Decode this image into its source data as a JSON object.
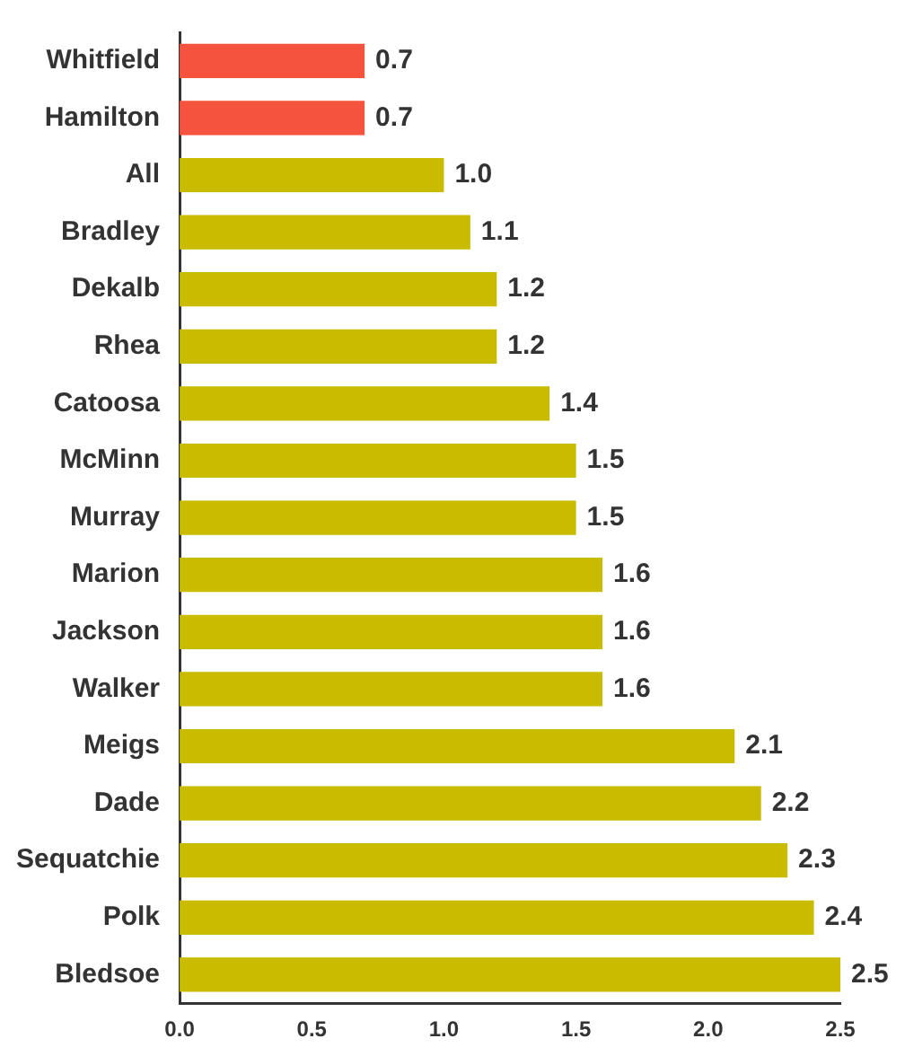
{
  "chart_data": {
    "type": "bar",
    "orientation": "horizontal",
    "categories": [
      "Whitfield",
      "Hamilton",
      "All",
      "Bradley",
      "Dekalb",
      "Rhea",
      "Catoosa",
      "McMinn",
      "Murray",
      "Marion",
      "Jackson",
      "Walker",
      "Meigs",
      "Dade",
      "Sequatchie",
      "Polk",
      "Bledsoe"
    ],
    "values": [
      0.7,
      0.7,
      1.0,
      1.1,
      1.2,
      1.2,
      1.4,
      1.5,
      1.5,
      1.6,
      1.6,
      1.6,
      2.1,
      2.2,
      2.3,
      2.4,
      2.5
    ],
    "value_labels": [
      "0.7",
      "0.7",
      "1.0",
      "1.1",
      "1.2",
      "1.2",
      "1.4",
      "1.5",
      "1.5",
      "1.6",
      "1.6",
      "1.6",
      "2.1",
      "2.2",
      "2.3",
      "2.4",
      "2.5"
    ],
    "colors": [
      "#f5533d",
      "#f5533d",
      "#c9bc00",
      "#c9bc00",
      "#c9bc00",
      "#c9bc00",
      "#c9bc00",
      "#c9bc00",
      "#c9bc00",
      "#c9bc00",
      "#c9bc00",
      "#c9bc00",
      "#c9bc00",
      "#c9bc00",
      "#c9bc00",
      "#c9bc00",
      "#c9bc00"
    ],
    "xlim": [
      0,
      2.5
    ],
    "xticks": [
      {
        "value": 0,
        "label": "0.0"
      },
      {
        "value": 0.5,
        "label": "0.5"
      },
      {
        "value": 1,
        "label": "1.0"
      },
      {
        "value": 1.5,
        "label": "1.5"
      },
      {
        "value": 2,
        "label": "2.0"
      },
      {
        "value": 2.5,
        "label": "2.5"
      }
    ],
    "grid": false,
    "legend": false
  }
}
